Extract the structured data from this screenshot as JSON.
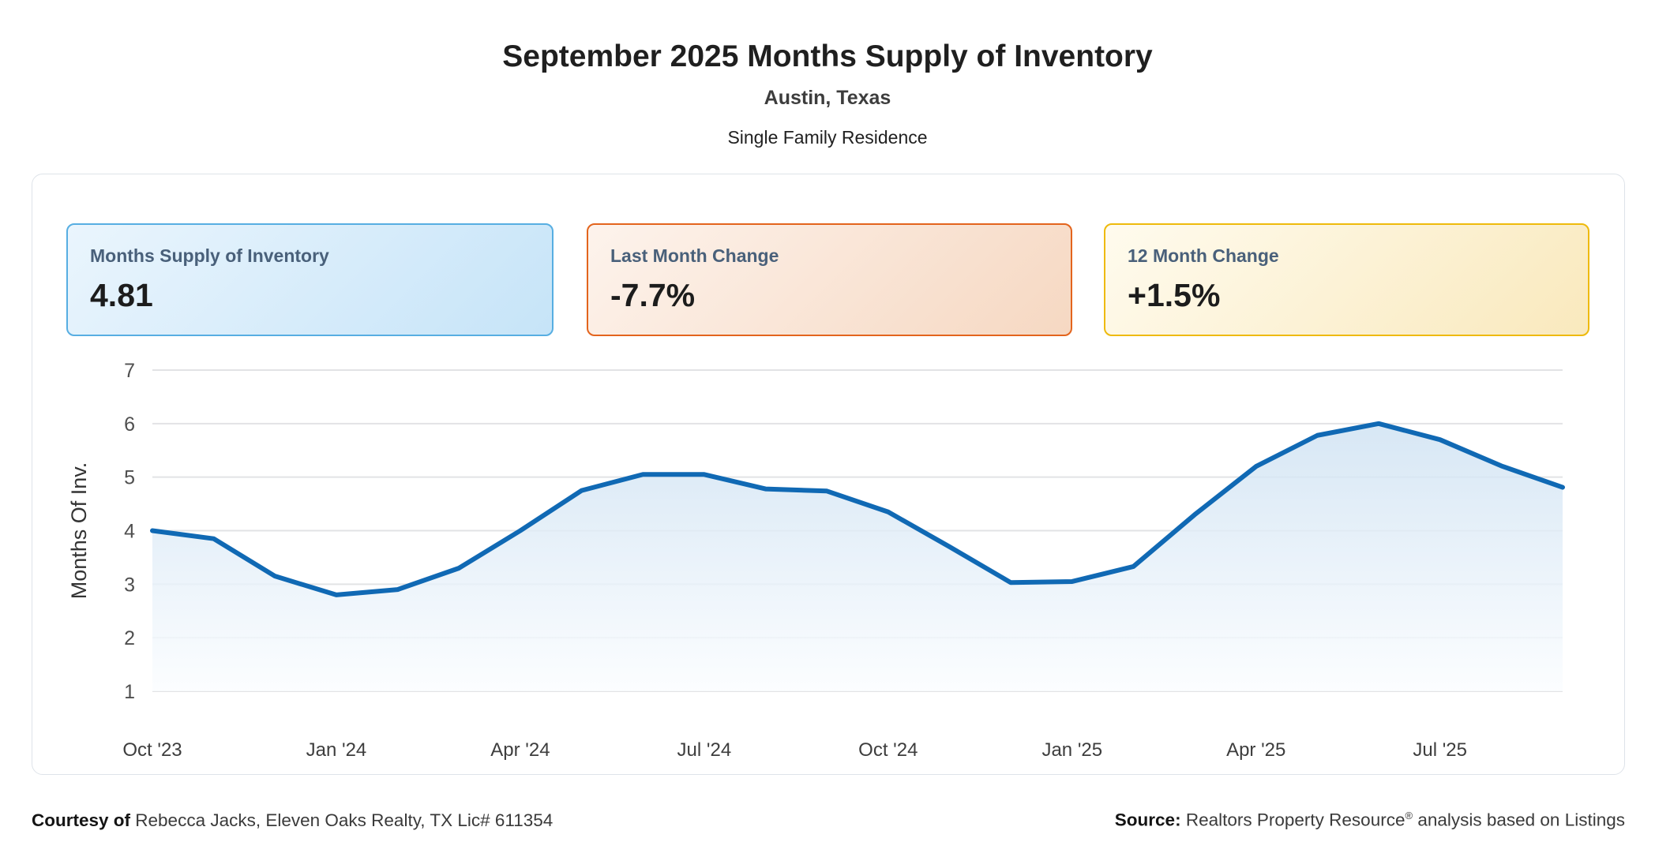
{
  "header": {
    "title": "September 2025 Months Supply of Inventory",
    "location": "Austin, Texas",
    "property_type": "Single Family Residence"
  },
  "stats": [
    {
      "key": "months-supply",
      "label": "Months Supply of Inventory",
      "value": "4.81",
      "border_color": "#57aee2",
      "bg_from": "#eaf5fd",
      "bg_to": "#c6e4f8"
    },
    {
      "key": "last-month-change",
      "label": "Last Month Change",
      "value": "-7.7%",
      "border_color": "#e3641d",
      "bg_from": "#fdf3ec",
      "bg_to": "#f6d8c2"
    },
    {
      "key": "twelve-month-change",
      "label": "12 Month Change",
      "value": "+1.5%",
      "border_color": "#eeba0c",
      "bg_from": "#fffbee",
      "bg_to": "#f9e9bd"
    }
  ],
  "chart_data": {
    "type": "area",
    "title": "September 2025 Months Supply of Inventory",
    "xlabel": "",
    "ylabel": "Months Of Inv.",
    "x": [
      "Oct '23",
      "Nov '23",
      "Dec '23",
      "Jan '24",
      "Feb '24",
      "Mar '24",
      "Apr '24",
      "May '24",
      "Jun '24",
      "Jul '24",
      "Aug '24",
      "Sep '24",
      "Oct '24",
      "Nov '24",
      "Dec '24",
      "Jan '25",
      "Feb '25",
      "Mar '25",
      "Apr '25",
      "May '25",
      "Jun '25",
      "Jul '25",
      "Aug '25",
      "Sep '25"
    ],
    "values": [
      4.0,
      3.85,
      3.15,
      2.8,
      2.9,
      3.3,
      4.0,
      4.75,
      5.05,
      5.05,
      4.78,
      4.74,
      4.35,
      3.7,
      3.03,
      3.05,
      3.33,
      4.3,
      5.2,
      5.78,
      6.0,
      5.7,
      5.21,
      4.81
    ],
    "x_tick_labels": [
      "Oct '23",
      "Jan '24",
      "Apr '24",
      "Jul '24",
      "Oct '24",
      "Jan '25",
      "Apr '25",
      "Jul '25"
    ],
    "x_tick_every": 3,
    "y_ticks": [
      1,
      2,
      3,
      4,
      5,
      6,
      7
    ],
    "ylim": [
      1,
      7
    ],
    "baseline": 1,
    "grid": true,
    "legend": "none",
    "line_color": "#1069b4",
    "area_top_color": "#cde1f2",
    "area_bottom_color": "#fbfdff",
    "grid_color": "#e2e3e5",
    "x_tick_color": "#3d3d3d",
    "y_tick_color": "#4f4f4f",
    "axis_title_color": "#333333"
  },
  "footer": {
    "courtesy_label": "Courtesy of",
    "courtesy_text": "Rebecca Jacks, Eleven Oaks Realty, TX Lic# 611354",
    "source_label": "Source:",
    "source_name": "Realtors Property Resource",
    "source_reg": "®",
    "source_rest": "analysis based on Listings"
  }
}
